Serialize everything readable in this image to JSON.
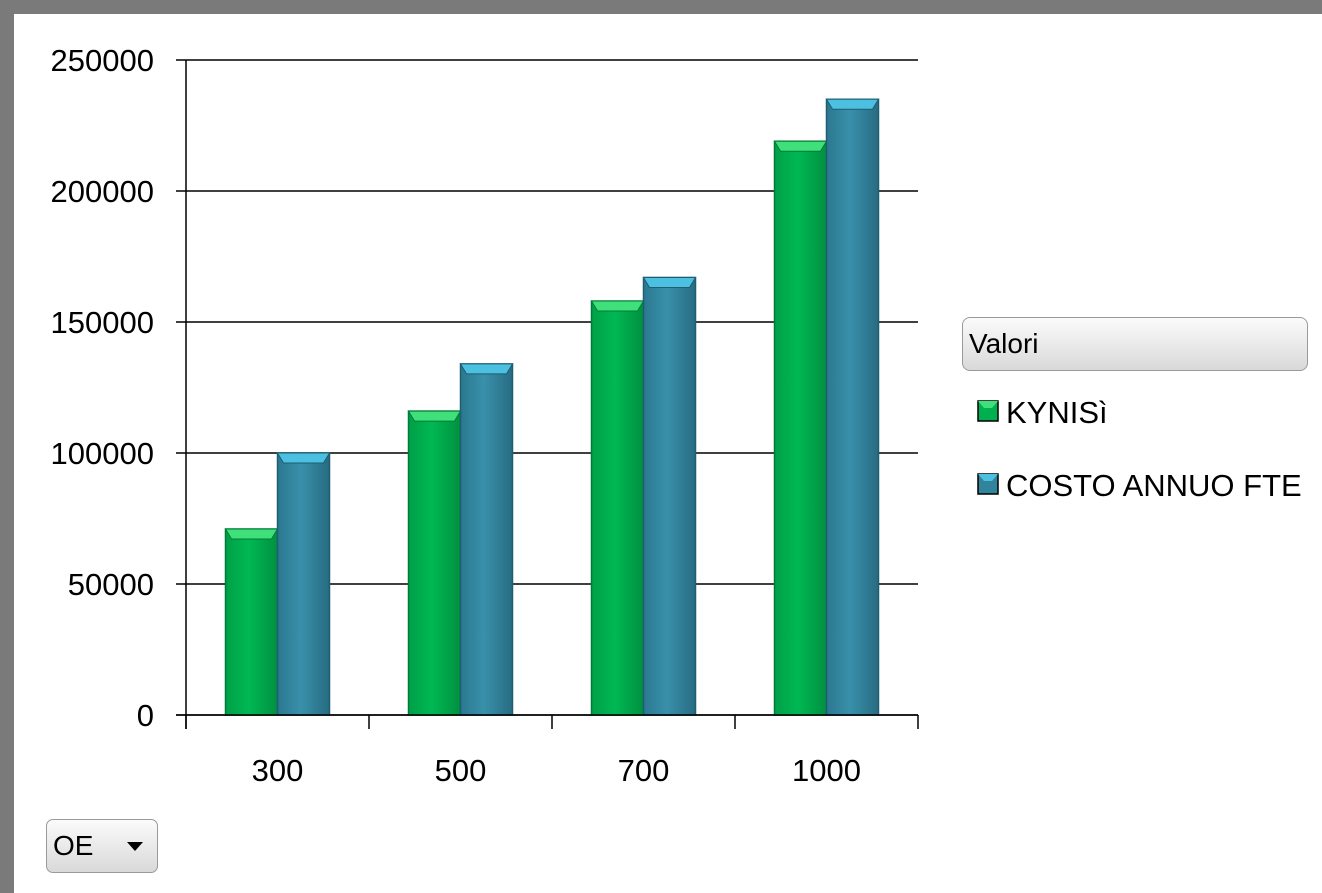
{
  "legend": {
    "header": "Valori"
  },
  "field_button": {
    "label": "OE"
  },
  "colors": {
    "series1": "#00b050",
    "series1_top": "#3fe07a",
    "series2": "#31849b",
    "series2_top": "#4bc0e0"
  },
  "chart_data": {
    "type": "bar",
    "categories": [
      "300",
      "500",
      "700",
      "1000"
    ],
    "series": [
      {
        "name": "KYNISì",
        "values": [
          71000,
          116000,
          158000,
          219000
        ]
      },
      {
        "name": "COSTO ANNUO FTE",
        "values": [
          100000,
          134000,
          167000,
          235000
        ]
      }
    ],
    "ylim": [
      0,
      250000
    ],
    "yticks": [
      0,
      50000,
      100000,
      150000,
      200000,
      250000
    ],
    "grid": true,
    "legend_position": "right"
  }
}
